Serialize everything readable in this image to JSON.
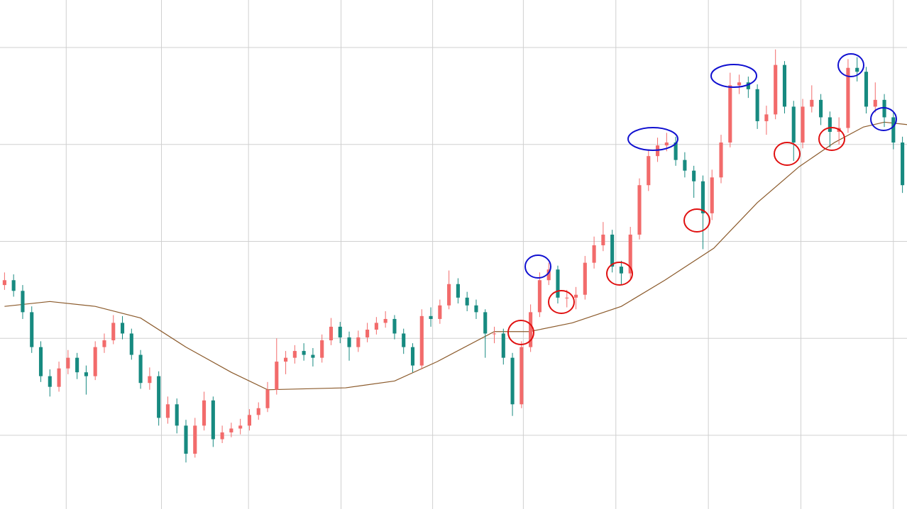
{
  "chart_data": {
    "type": "candlestick",
    "open": [
      2.55,
      2.6,
      2.49,
      2.27,
      1.91,
      1.61,
      1.5,
      1.69,
      1.8,
      1.65,
      1.61,
      1.91,
      1.98,
      2.16,
      2.05,
      1.83,
      1.54,
      1.61,
      1.18,
      1.32,
      1.1,
      0.81,
      1.1,
      1.36,
      0.96,
      1.03,
      1.07,
      1.1,
      1.21,
      1.28,
      1.47,
      1.76,
      1.8,
      1.87,
      1.83,
      1.8,
      1.98,
      2.12,
      2.01,
      1.91,
      2.01,
      2.09,
      2.16,
      2.2,
      2.05,
      1.91,
      1.72,
      2.23,
      2.2,
      2.34,
      2.56,
      2.42,
      2.34,
      2.27,
      2.05,
      2.05,
      1.8,
      1.32,
      1.91,
      2.27,
      2.6,
      2.71,
      2.42,
      2.42,
      2.45,
      2.78,
      2.96,
      3.07,
      2.74,
      2.67,
      3.07,
      3.58,
      3.88,
      3.99,
      4.02,
      3.84,
      3.73,
      3.62,
      3.29,
      3.66,
      4.02,
      4.61,
      4.64,
      4.57,
      4.24,
      4.31,
      4.82,
      4.39,
      4.02,
      4.39,
      4.46,
      4.28,
      4.13,
      4.17,
      4.79,
      4.75,
      4.39,
      4.46,
      4.28,
      4.02
    ],
    "high": [
      2.68,
      2.66,
      2.55,
      2.33,
      1.97,
      1.68,
      1.76,
      1.88,
      1.85,
      1.72,
      1.97,
      2.05,
      2.24,
      2.23,
      2.1,
      1.88,
      1.7,
      1.66,
      1.4,
      1.38,
      1.16,
      1.18,
      1.45,
      1.4,
      1.1,
      1.13,
      1.17,
      1.27,
      1.34,
      1.55,
      2.0,
      1.87,
      1.93,
      1.95,
      1.9,
      2.04,
      2.21,
      2.17,
      2.07,
      2.08,
      2.16,
      2.22,
      2.28,
      2.24,
      2.1,
      1.95,
      2.3,
      2.32,
      2.4,
      2.7,
      2.62,
      2.48,
      2.4,
      2.3,
      2.12,
      2.1,
      1.85,
      1.97,
      2.35,
      2.68,
      2.78,
      2.75,
      2.5,
      2.53,
      2.85,
      3.05,
      3.2,
      3.12,
      2.8,
      3.15,
      3.65,
      3.95,
      4.07,
      4.12,
      4.08,
      3.92,
      3.78,
      3.68,
      3.74,
      4.1,
      4.74,
      4.72,
      4.7,
      4.62,
      4.4,
      4.98,
      4.86,
      4.45,
      4.47,
      4.61,
      4.52,
      4.34,
      4.28,
      4.88,
      4.9,
      4.8,
      4.64,
      4.52,
      4.34,
      4.08
    ],
    "low": [
      2.5,
      2.43,
      2.2,
      1.85,
      1.55,
      1.4,
      1.45,
      1.63,
      1.58,
      1.42,
      1.57,
      1.85,
      1.94,
      1.99,
      1.78,
      1.48,
      1.47,
      1.1,
      1.12,
      1.02,
      0.72,
      0.77,
      1.05,
      0.88,
      0.92,
      0.98,
      1.01,
      1.05,
      1.16,
      1.24,
      1.42,
      1.63,
      1.74,
      1.77,
      1.71,
      1.75,
      1.93,
      1.95,
      1.77,
      1.86,
      1.96,
      2.04,
      2.11,
      1.99,
      1.84,
      1.65,
      1.68,
      2.12,
      2.15,
      2.3,
      2.36,
      2.28,
      2.2,
      1.8,
      1.95,
      1.73,
      1.2,
      1.28,
      1.86,
      2.22,
      2.55,
      2.36,
      2.32,
      2.3,
      2.4,
      2.72,
      2.9,
      2.68,
      2.55,
      2.62,
      3.02,
      3.52,
      3.82,
      3.93,
      3.78,
      3.66,
      3.45,
      2.92,
      3.22,
      3.6,
      3.97,
      4.52,
      4.48,
      4.16,
      4.1,
      4.26,
      4.32,
      3.83,
      3.96,
      4.33,
      4.2,
      3.97,
      4.0,
      4.12,
      4.65,
      4.32,
      4.33,
      4.18,
      3.95,
      3.5
    ],
    "close": [
      2.6,
      2.49,
      2.27,
      1.91,
      1.61,
      1.5,
      1.69,
      1.8,
      1.65,
      1.61,
      1.91,
      1.98,
      2.16,
      2.05,
      1.83,
      1.54,
      1.61,
      1.18,
      1.32,
      1.1,
      0.81,
      1.1,
      1.36,
      0.96,
      1.03,
      1.07,
      1.1,
      1.21,
      1.28,
      1.47,
      1.76,
      1.8,
      1.87,
      1.83,
      1.8,
      1.98,
      2.12,
      2.01,
      1.91,
      2.01,
      2.09,
      2.16,
      2.2,
      2.05,
      1.91,
      1.72,
      2.23,
      2.2,
      2.34,
      2.56,
      2.42,
      2.34,
      2.27,
      2.05,
      2.05,
      1.8,
      1.32,
      1.91,
      2.27,
      2.6,
      2.71,
      2.42,
      2.42,
      2.45,
      2.78,
      2.96,
      3.07,
      2.74,
      2.67,
      3.07,
      3.58,
      3.88,
      3.99,
      4.02,
      3.84,
      3.73,
      3.62,
      3.29,
      3.66,
      4.02,
      4.61,
      4.64,
      4.57,
      4.24,
      4.31,
      4.82,
      4.39,
      4.02,
      4.39,
      4.46,
      4.28,
      4.13,
      4.17,
      4.79,
      4.75,
      4.39,
      4.46,
      4.28,
      4.02,
      3.58
    ],
    "up_color": "#f26b6b",
    "down_color": "#178a80",
    "moving_average": {
      "color": "#8b5a2b",
      "x": [
        0,
        5,
        10,
        15,
        20,
        25,
        29,
        37.6,
        43,
        47.7,
        54,
        57.9,
        62.6,
        68,
        72.8,
        78.2,
        83,
        87.6,
        91.5,
        94.7,
        97,
        100
      ],
      "values": [
        2.33,
        2.38,
        2.33,
        2.21,
        1.91,
        1.65,
        1.47,
        1.49,
        1.56,
        1.76,
        2.07,
        2.07,
        2.16,
        2.33,
        2.6,
        2.93,
        3.4,
        3.77,
        4.02,
        4.18,
        4.23,
        4.2
      ]
    },
    "xlim": [
      -0.5,
      99.5
    ],
    "xticks": [
      6.8,
      17.3,
      26.9,
      37.1,
      47.2,
      57.2,
      67.4,
      77.6,
      87.8,
      98.0
    ],
    "ylim": [
      0.24,
      5.49
    ],
    "yticks": [
      1,
      2,
      3,
      4,
      5
    ],
    "grid": true
  }
}
